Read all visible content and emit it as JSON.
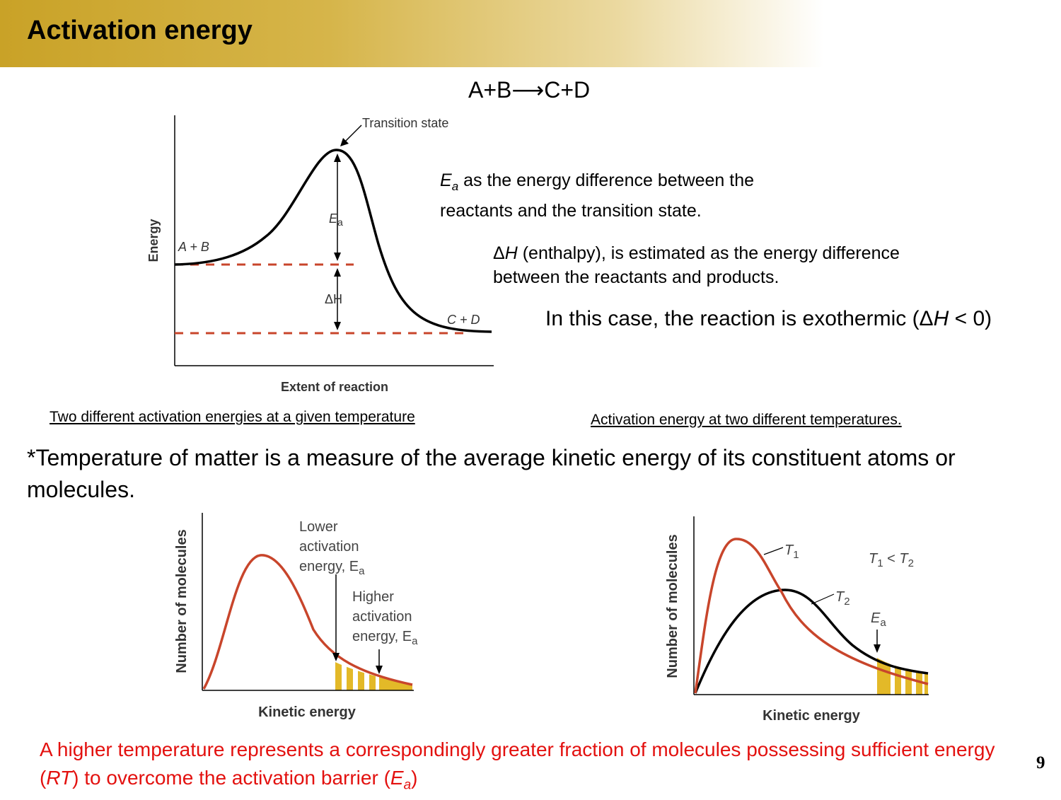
{
  "slide": {
    "title": "Activation energy",
    "equation": "A+B⟶C+D",
    "page_number": "9"
  },
  "notes": {
    "ea_symbol": "E",
    "ea_sub": "a",
    "ea_text": " as the energy difference between the reactants and the transition state.",
    "dh_symbol": "Δ",
    "dh_var": "H",
    "dh_text_1": " (enthalpy), is estimated as the energy difference between the reactants and products.",
    "exothermic_pre": "In this case, the reaction is exothermic (Δ",
    "exothermic_var": "H",
    "exothermic_post": " < 0)"
  },
  "captions": {
    "left": "Two different activation energies at a given temperature",
    "right": "Activation energy at two different temperatures."
  },
  "temperature_note": "*Temperature of matter is a measure of the average kinetic energy of its constituent atoms or molecules.",
  "conclusion": {
    "pre": "A higher temperature represents a correspondingly greater fraction of molecules possessing sufficient energy (",
    "rt": "RT",
    "mid": ") to overcome the activation barrier (",
    "ea": "E",
    "ea_sub": "a",
    "post": ")"
  },
  "diagram_energy": {
    "y_label": "Energy",
    "x_label": "Extent of reaction",
    "transition_state": "Transition state",
    "reactants": "A + B",
    "products": "C + D",
    "ea_label": "E",
    "ea_label_sub": "a",
    "dh_label": "ΔH"
  },
  "diagram_two_ea": {
    "y_label": "Number of molecules",
    "x_label": "Kinetic energy",
    "lower_1": "Lower",
    "lower_2": "activation",
    "lower_3": "energy, E",
    "lower_sub": "a",
    "higher_1": "Higher",
    "higher_2": "activation",
    "higher_3": "energy, E",
    "higher_sub": "a"
  },
  "diagram_two_t": {
    "y_label": "Number of molecules",
    "x_label": "Kinetic energy",
    "t1": "T",
    "t1_sub": "1",
    "t2": "T",
    "t2_sub": "2",
    "relation_a": "T",
    "relation_a_sub": "1",
    "relation_op": " < ",
    "relation_b": "T",
    "relation_b_sub": "2",
    "ea": "E",
    "ea_sub": "a"
  },
  "colors": {
    "title_gold": "#c9a227",
    "curve_red": "#c8452b",
    "fill_gold": "#e3b928",
    "conclusion_red": "#e3110f"
  }
}
